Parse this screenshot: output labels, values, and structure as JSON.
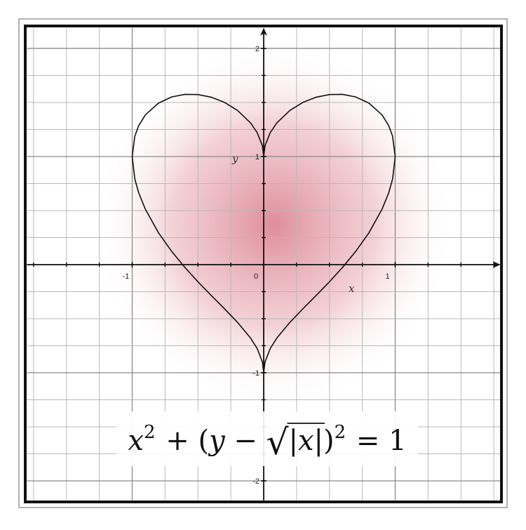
{
  "chart_data": {
    "type": "line",
    "x_label": "x",
    "y_label": "y",
    "x": [
      -1,
      -0.98,
      -0.95,
      -0.9,
      -0.8,
      -0.7,
      -0.6,
      -0.5,
      -0.4,
      -0.3,
      -0.2,
      -0.1,
      -0.05,
      -0.01,
      0,
      0.01,
      0.05,
      0.1,
      0.2,
      0.3,
      0.4,
      0.5,
      0.6,
      0.7,
      0.8,
      0.9,
      0.95,
      0.98,
      1
    ],
    "series": [
      {
        "color": "#111111",
        "values": [
          1,
          1.189,
          1.287,
          1.385,
          1.494,
          1.551,
          1.575,
          1.573,
          1.549,
          1.502,
          1.427,
          1.311,
          1.222,
          1.1,
          1,
          1.1,
          1.222,
          1.311,
          1.427,
          1.502,
          1.549,
          1.573,
          1.575,
          1.551,
          1.494,
          1.385,
          1.287,
          1.189,
          1
        ]
      },
      {
        "color": "#111111",
        "values": [
          1,
          0.791,
          0.662,
          0.513,
          0.294,
          0.123,
          -0.025,
          -0.159,
          -0.284,
          -0.406,
          -0.533,
          -0.679,
          -0.775,
          -0.9,
          -1,
          -0.9,
          -0.775,
          -0.679,
          -0.533,
          -0.406,
          -0.284,
          -0.159,
          -0.025,
          0.123,
          0.294,
          0.513,
          0.662,
          0.791,
          1
        ]
      }
    ],
    "xlim": [
      -1.8,
      1.8
    ],
    "ylim": [
      -2.18,
      2.19
    ],
    "xticks": [
      -1,
      0,
      1
    ],
    "yticks": [
      -2,
      -1,
      1,
      2
    ],
    "grid": true,
    "grid_step": 0.25,
    "formula": [
      {
        "text": "x",
        "style": "italic"
      },
      {
        "text": "2",
        "style": "sup"
      },
      {
        "text": " + (",
        "style": "roman"
      },
      {
        "text": "y",
        "style": "italic"
      },
      {
        "text": " − ",
        "style": "roman"
      },
      {
        "text": "√",
        "style": "radical"
      },
      {
        "text": "|",
        "style": "over"
      },
      {
        "text": "x",
        "style": "over-italic"
      },
      {
        "text": "|",
        "style": "over"
      },
      {
        "text": ")",
        "style": "roman"
      },
      {
        "text": "2",
        "style": "sup"
      },
      {
        "text": " = 1",
        "style": "roman"
      }
    ]
  }
}
